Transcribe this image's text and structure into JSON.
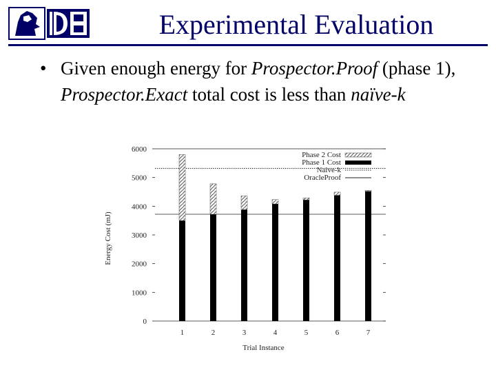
{
  "slide": {
    "title": "Experimental Evaluation",
    "bullet": {
      "marker": "•",
      "parts": [
        {
          "text": "Given enough energy for ",
          "italic": false
        },
        {
          "text": "Prospector.Proof",
          "italic": true
        },
        {
          "text": " (phase 1), ",
          "italic": false
        },
        {
          "text": "Prospector.Exact",
          "italic": true
        },
        {
          "text": " total cost is less than ",
          "italic": false
        },
        {
          "text": "naïve-k",
          "italic": true
        }
      ]
    }
  },
  "colors": {
    "title": "#000066",
    "logo": "#000066"
  },
  "chart_data": {
    "type": "bar",
    "stacked": true,
    "categories": [
      "1",
      "2",
      "3",
      "4",
      "5",
      "6",
      "7"
    ],
    "series": [
      {
        "name": "Phase 1 Cost",
        "values": [
          3500,
          3720,
          3880,
          4080,
          4220,
          4380,
          4520
        ],
        "fill": "solid-black"
      },
      {
        "name": "Phase 2 Cost",
        "values": [
          2300,
          1060,
          480,
          150,
          70,
          110,
          30
        ],
        "fill": "hatched"
      }
    ],
    "reference_lines": [
      {
        "name": "Naive-k",
        "value": 5320,
        "style": "dotted"
      },
      {
        "name": "OracleProof",
        "value": 3720,
        "style": "solid"
      }
    ],
    "xlabel": "Trial Instance",
    "ylabel": "Energy Cost (mJ)",
    "ylim": [
      0,
      6000
    ],
    "yticks": [
      0,
      1000,
      2000,
      3000,
      4000,
      5000,
      6000
    ],
    "legend": [
      "Phase 2 Cost",
      "Phase 1 Cost",
      "Naive-k",
      "OracleProof"
    ],
    "legend_position": "top-right",
    "grid": false
  }
}
